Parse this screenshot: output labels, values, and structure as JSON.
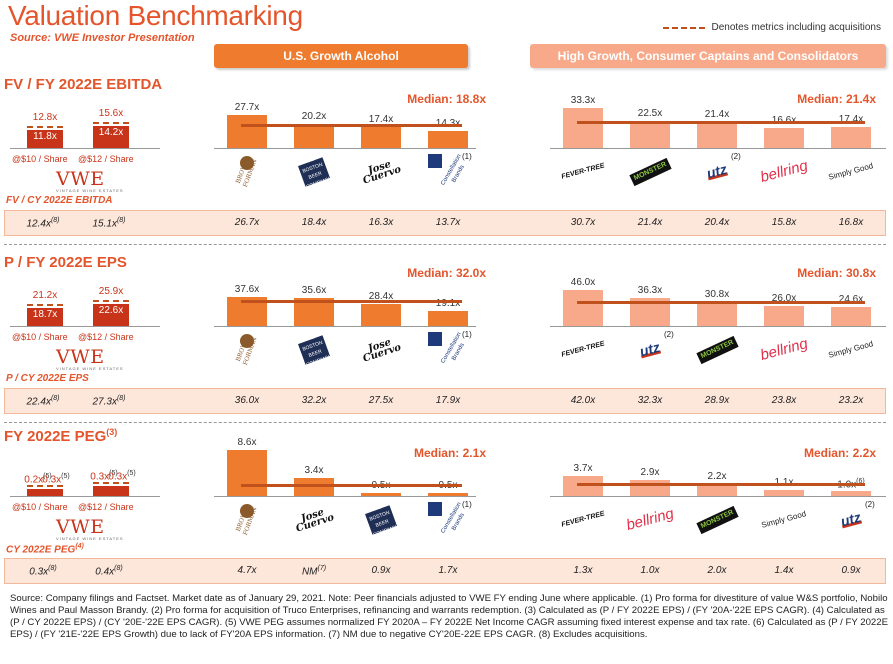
{
  "header": {
    "title": "Valuation Benchmarking",
    "subtitle": "Source: VWE Investor Presentation",
    "legend": "Denotes metrics including acquisitions",
    "group_us": "U.S. Growth Alcohol",
    "group_hg": "High Growth, Consumer Captains and Consolidators"
  },
  "vwe": {
    "logo": "VWE",
    "logo_sub": "VINTAGE WINE ESTATES",
    "share10": "@$10 / Share",
    "share12": "@$12 / Share"
  },
  "logos": {
    "bf": "BROWN-FORMAN",
    "boston": "THE BOSTON BEER COMPANY",
    "cuervo": "Jose Cuervo",
    "constellation": "Constellation Brands",
    "fever": "FEVER-TREE",
    "monster": "MONSTER",
    "utz": "utz",
    "utz_sub": "BRANDS",
    "bellring": "bellring",
    "simply": "Simply Good"
  },
  "colors": {
    "accent": "#e4552c",
    "us_bar": "#ef7b2e",
    "hg_bar": "#f7a98a",
    "vwe_bar": "#c8341a",
    "median_line": "#c0501c",
    "band": "#fde6da"
  },
  "chart_data": [
    {
      "type": "bar",
      "title": "FV / FY 2022E EBITDA",
      "vwe": {
        "values": [
          11.8,
          14.2
        ],
        "labels": [
          "11.8x",
          "14.2x"
        ],
        "incl_acq_labels": [
          "12.8x",
          "15.6x"
        ]
      },
      "us": {
        "median": "Median: 18.8x",
        "companies": [
          "Brown-Forman",
          "Boston Beer",
          "Jose Cuervo",
          "Constellation Brands"
        ],
        "values": [
          27.7,
          20.2,
          17.4,
          14.3
        ],
        "labels": [
          "27.7x",
          "20.2x",
          "17.4x",
          "14.3x"
        ],
        "notes": [
          "",
          "",
          "",
          "(1)"
        ]
      },
      "hg": {
        "median": "Median: 21.4x",
        "companies": [
          "Fever-Tree",
          "Monster",
          "Utz",
          "BellRing",
          "Simply Good"
        ],
        "values": [
          33.3,
          22.5,
          21.4,
          16.6,
          17.4
        ],
        "labels": [
          "33.3x",
          "22.5x",
          "21.4x",
          "16.6x",
          "17.4x"
        ],
        "notes": [
          "",
          "",
          "(2)",
          "",
          ""
        ]
      },
      "cy": {
        "label": "FV / CY 2022E EBITDA",
        "vwe": [
          {
            "v": "12.4x",
            "n": "(8)"
          },
          {
            "v": "15.1x",
            "n": "(8)"
          }
        ],
        "us": [
          "26.7x",
          "18.4x",
          "16.3x",
          "13.7x"
        ],
        "hg": [
          "30.7x",
          "21.4x",
          "20.4x",
          "15.8x",
          "16.8x"
        ]
      }
    },
    {
      "type": "bar",
      "title": "P / FY 2022E EPS",
      "vwe": {
        "values": [
          18.7,
          22.6
        ],
        "labels": [
          "18.7x",
          "22.6x"
        ],
        "incl_acq_labels": [
          "21.2x",
          "25.9x"
        ]
      },
      "us": {
        "median": "Median: 32.0x",
        "companies": [
          "Brown-Forman",
          "Boston Beer",
          "Jose Cuervo",
          "Constellation Brands"
        ],
        "values": [
          37.6,
          35.6,
          28.4,
          19.1
        ],
        "labels": [
          "37.6x",
          "35.6x",
          "28.4x",
          "19.1x"
        ],
        "notes": [
          "",
          "",
          "",
          "(1)"
        ]
      },
      "hg": {
        "median": "Median: 30.8x",
        "companies": [
          "Fever-Tree",
          "Utz",
          "Monster",
          "BellRing",
          "Simply Good"
        ],
        "values": [
          46.0,
          36.3,
          30.8,
          26.0,
          24.6
        ],
        "labels": [
          "46.0x",
          "36.3x",
          "30.8x",
          "26.0x",
          "24.6x"
        ],
        "notes": [
          "",
          "(2)",
          "",
          "",
          ""
        ]
      },
      "cy": {
        "label": "P / CY 2022E EPS",
        "vwe": [
          {
            "v": "22.4x",
            "n": "(8)"
          },
          {
            "v": "27.3x",
            "n": "(8)"
          }
        ],
        "us": [
          "36.0x",
          "32.2x",
          "27.5x",
          "17.9x"
        ],
        "hg": [
          "42.0x",
          "32.3x",
          "28.9x",
          "23.8x",
          "23.2x"
        ]
      }
    },
    {
      "type": "bar",
      "title": "FY 2022E PEG",
      "title_note": "(3)",
      "vwe": {
        "values": [
          0.2,
          0.3
        ],
        "labels": [
          "0.2x",
          "0.3x"
        ],
        "label_notes": [
          "(5)",
          "(5)"
        ],
        "incl_acq_labels": [
          "0.3x",
          "0.3x"
        ],
        "incl_acq_notes": [
          "(5)",
          "(5)"
        ]
      },
      "us": {
        "median": "Median: 2.1x",
        "companies": [
          "Brown-Forman",
          "Jose Cuervo",
          "Boston Beer",
          "Constellation Brands"
        ],
        "values": [
          8.6,
          3.4,
          0.5,
          0.5
        ],
        "labels": [
          "8.6x",
          "3.4x",
          "0.5x",
          "0.5x"
        ],
        "notes": [
          "",
          "",
          "",
          "(1)"
        ]
      },
      "hg": {
        "median": "Median: 2.2x",
        "companies": [
          "Fever-Tree",
          "BellRing",
          "Monster",
          "Simply Good",
          "Utz"
        ],
        "values": [
          3.7,
          2.9,
          2.2,
          1.1,
          1.0
        ],
        "labels": [
          "3.7x",
          "2.9x",
          "2.2x",
          "1.1x",
          "1.0x"
        ],
        "label_notes": [
          "",
          "",
          "",
          "",
          "(6)"
        ],
        "notes": [
          "",
          "",
          "",
          "",
          "(2)"
        ]
      },
      "cy": {
        "label": "CY 2022E PEG",
        "label_note": "(4)",
        "vwe": [
          {
            "v": "0.3x",
            "n": "(8)"
          },
          {
            "v": "0.4x",
            "n": "(8)"
          }
        ],
        "us": [
          "4.7x",
          "NM",
          "0.9x",
          "1.7x"
        ],
        "us_notes": [
          "",
          "(7)",
          "",
          ""
        ],
        "hg": [
          "1.3x",
          "1.0x",
          "2.0x",
          "1.4x",
          "0.9x"
        ]
      }
    }
  ],
  "footnote": "Source: Company filings and Factset. Market date as of January 29, 2021.   Note:  Peer financials adjusted to VWE FY ending June where applicable.  (1)  Pro forma for divestiture of value W&S portfolio, Nobilo Wines and Paul Masson Brandy.   (2)  Pro forma for acquisition of Truco Enterprises, refinancing and warrants redemption.  (3)  Calculated as (P / FY 2022E EPS) / (FY '20A-'22E EPS CAGR).  (4)  Calculated as (P / CY 2022E EPS) / (CY '20E-'22E EPS CAGR).  (5)  VWE PEG assumes normalized FY 2020A – FY 2022E Net Income CAGR assuming fixed interest expense and tax rate.  (6)  Calculated as (P / FY 2022E EPS) / (FY '21E-'22E EPS Growth) due to lack of FY'20A EPS information.  (7)  NM due to negative CY'20E-22E EPS CAGR.  (8)  Excludes acquisitions."
}
